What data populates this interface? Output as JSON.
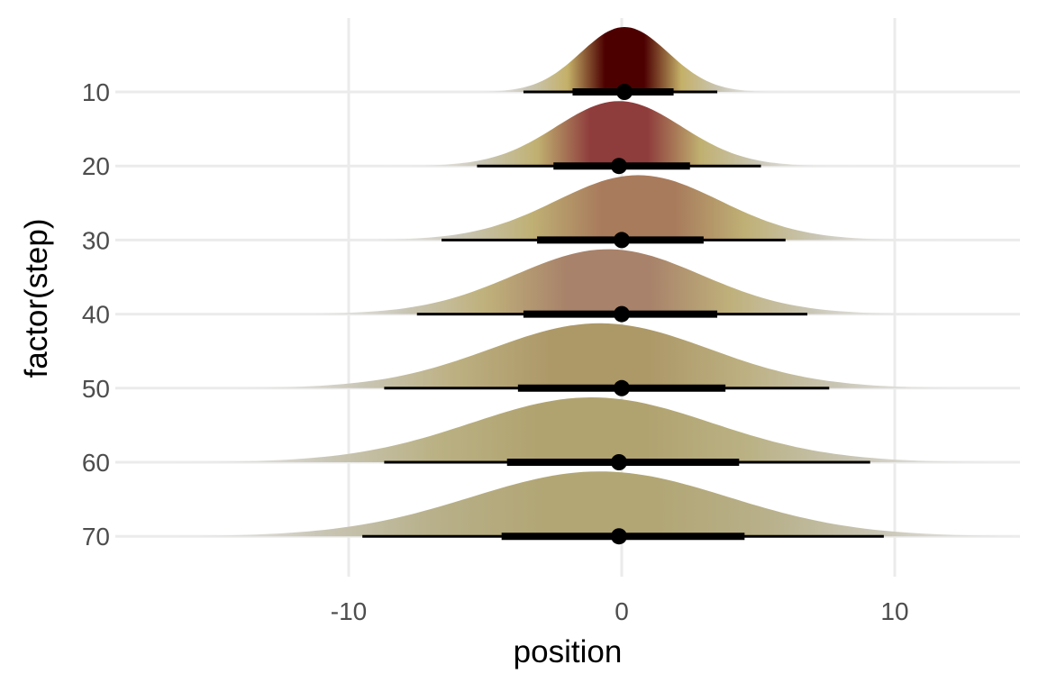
{
  "chart_data": {
    "type": "halfeye",
    "title": "",
    "xlabel": "position",
    "ylabel": "factor(step)",
    "xlim": [
      -19,
      14.5
    ],
    "xticks": [
      -10,
      0,
      10
    ],
    "xtick_labels": [
      "-10",
      "0",
      "10"
    ],
    "categories": [
      "10",
      "20",
      "30",
      "40",
      "50",
      "60",
      "70"
    ],
    "grid": true,
    "legend": "none",
    "series": [
      {
        "category": "10",
        "mean": 0.1,
        "sd": 1.6,
        "peak_color": "#4d0000",
        "tail_color": "#c4b068",
        "interval_66": [
          -1.8,
          1.9
        ],
        "interval_95": [
          -3.6,
          3.5
        ],
        "point": 0.1
      },
      {
        "category": "20",
        "mean": -0.1,
        "sd": 2.3,
        "peak_color": "#8e3c3c",
        "tail_color": "#c0b070",
        "interval_66": [
          -2.5,
          2.5
        ],
        "interval_95": [
          -5.3,
          5.1
        ],
        "point": -0.1
      },
      {
        "category": "30",
        "mean": 0.6,
        "sd": 3.0,
        "peak_color": "#a87b5c",
        "tail_color": "#bfb075",
        "interval_66": [
          -3.1,
          3.0
        ],
        "interval_95": [
          -6.6,
          6.0
        ],
        "point": 0.0
      },
      {
        "category": "40",
        "mean": -0.5,
        "sd": 3.4,
        "peak_color": "#a8826a",
        "tail_color": "#bfb07a",
        "interval_66": [
          -3.6,
          3.5
        ],
        "interval_95": [
          -7.5,
          6.8
        ],
        "point": 0.0
      },
      {
        "category": "50",
        "mean": -0.8,
        "sd": 4.0,
        "peak_color": "#ad9868",
        "tail_color": "#bcaf80",
        "interval_66": [
          -3.8,
          3.8
        ],
        "interval_95": [
          -8.7,
          7.6
        ],
        "point": 0.0
      },
      {
        "category": "60",
        "mean": -1.1,
        "sd": 4.4,
        "peak_color": "#b1a370",
        "tail_color": "#bab184",
        "interval_66": [
          -4.2,
          4.3
        ],
        "interval_95": [
          -8.7,
          9.1
        ],
        "point": -0.1
      },
      {
        "category": "70",
        "mean": -0.8,
        "sd": 4.7,
        "peak_color": "#b2a675",
        "tail_color": "#b8b08a",
        "interval_66": [
          -4.4,
          4.5
        ],
        "interval_95": [
          -9.5,
          9.6
        ],
        "point": -0.1
      }
    ]
  }
}
